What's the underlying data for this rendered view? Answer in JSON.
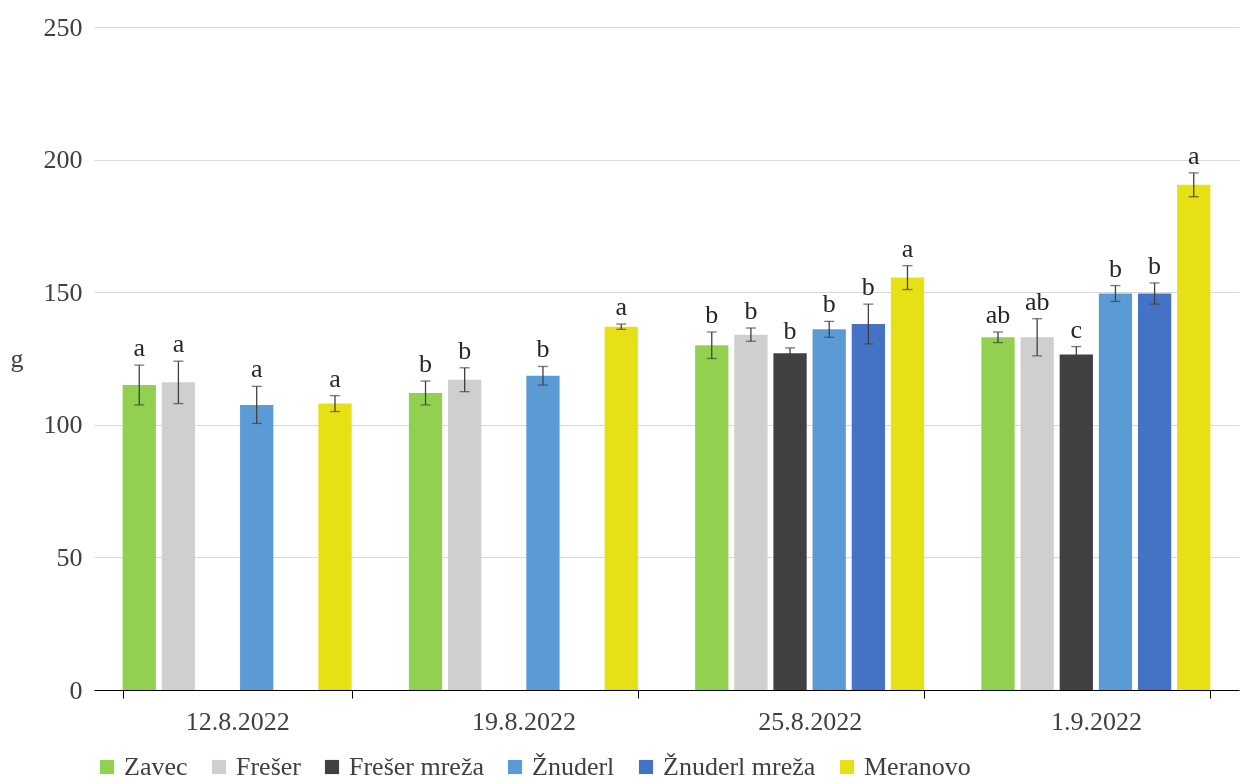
{
  "chart_data": {
    "type": "bar",
    "ylabel": "g",
    "categories": [
      "12.8.2022",
      "19.8.2022",
      "25.8.2022",
      "1.9.2022"
    ],
    "series": [
      {
        "name": "Zavec",
        "color": "#92d050",
        "values": [
          115,
          112,
          130,
          133
        ],
        "errors": [
          7.5,
          4.5,
          5,
          2
        ]
      },
      {
        "name": "Frešer",
        "color": "#d0cece",
        "values": [
          116,
          117,
          134,
          133
        ],
        "errors": [
          8,
          4.5,
          2.5,
          7
        ]
      },
      {
        "name": "Frešer mreža",
        "color": "#404040",
        "values": [
          null,
          null,
          127,
          126.5
        ],
        "errors": [
          null,
          null,
          2,
          3
        ]
      },
      {
        "name": "Žnuderl",
        "color": "#5b9bd5",
        "values": [
          107.5,
          118.5,
          136,
          149.5
        ],
        "errors": [
          7,
          3.5,
          3,
          3
        ]
      },
      {
        "name": "Žnuderl mreža",
        "color": "#4472c4",
        "values": [
          null,
          null,
          138,
          149.5
        ],
        "errors": [
          null,
          null,
          7.5,
          4
        ]
      },
      {
        "name": "Meranovo",
        "color": "#e6e015",
        "values": [
          108,
          137,
          155.5,
          190.5
        ],
        "errors": [
          3,
          1,
          4.5,
          4.5
        ]
      }
    ],
    "ylim": [
      0,
      250
    ],
    "yticks": [
      0,
      50,
      100,
      150,
      200,
      250
    ],
    "grid": "y",
    "legend": "bottom",
    "annotations": [
      "a",
      "a",
      "a",
      "a",
      "b",
      "b",
      "b",
      "a",
      "b",
      "b",
      "b",
      "b",
      "b",
      "a",
      "ab",
      "ab",
      "c",
      "b",
      "b",
      "a"
    ]
  }
}
